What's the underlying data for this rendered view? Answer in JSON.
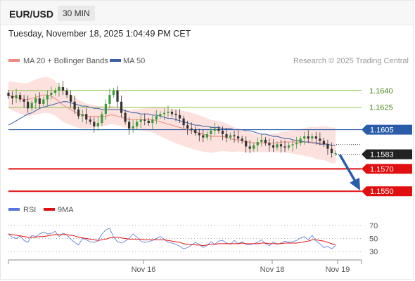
{
  "header": {
    "symbol": "EUR/USD",
    "timeframe": "30 MIN",
    "datetime": "Tuesday, November 18, 2025 1:04:49 PM CET"
  },
  "legend": {
    "items": [
      {
        "label": "MA 20 + Bollinger Bands",
        "color": "#f08a80"
      },
      {
        "label": "MA 50",
        "color": "#3a5fa6"
      }
    ],
    "rsi_items": [
      {
        "label": "RSI",
        "color": "#5577dd"
      },
      {
        "label": "9MA",
        "color": "#e01010"
      }
    ]
  },
  "copyright": "Research © 2025 Trading Central",
  "chart_data": [
    {
      "type": "candlestick",
      "pair": "EUR/USD",
      "price_range": [
        1.1545,
        1.165
      ],
      "x_ticks": [
        "Nov 16",
        "Nov 18",
        "Nov 19"
      ],
      "levels": [
        {
          "value": 1.164,
          "label": "1.1640",
          "kind": "resistance",
          "color": "#8bc34a"
        },
        {
          "value": 1.1625,
          "label": "1.1625",
          "kind": "resistance",
          "color": "#8bc34a"
        },
        {
          "value": 1.1605,
          "label": "1.1605",
          "kind": "pivot",
          "color": "#2a5caa"
        },
        {
          "value": 1.1583,
          "label": "1.1583",
          "kind": "last-price",
          "color": "#222222"
        },
        {
          "value": 1.157,
          "label": "1.1570",
          "kind": "support",
          "color": "#e01010"
        },
        {
          "value": 1.155,
          "label": "1.1550",
          "kind": "support",
          "color": "#e01010"
        }
      ],
      "close": [
        1.1635,
        1.1633,
        1.1636,
        1.1632,
        1.163,
        1.1624,
        1.1629,
        1.1633,
        1.1628,
        1.1632,
        1.1636,
        1.1638,
        1.164,
        1.1643,
        1.164,
        1.1636,
        1.163,
        1.1623,
        1.1617,
        1.1619,
        1.1614,
        1.1612,
        1.1608,
        1.1611,
        1.1619,
        1.1628,
        1.1636,
        1.164,
        1.163,
        1.162,
        1.1612,
        1.1606,
        1.1608,
        1.1612,
        1.1614,
        1.1613,
        1.1611,
        1.1614,
        1.1617,
        1.1619,
        1.162,
        1.1621,
        1.1619,
        1.1618,
        1.1615,
        1.1609,
        1.1606,
        1.1605,
        1.1602,
        1.16,
        1.1598,
        1.1601,
        1.1604,
        1.1606,
        1.1604,
        1.1601,
        1.1598,
        1.16,
        1.1599,
        1.1597,
        1.1595,
        1.159,
        1.1588,
        1.1591,
        1.1594,
        1.1596,
        1.1593,
        1.1591,
        1.1589,
        1.1592,
        1.159,
        1.1589,
        1.1591,
        1.1592,
        1.1593,
        1.1597,
        1.1599,
        1.1597,
        1.1599,
        1.1597,
        1.1595,
        1.1592,
        1.1588,
        1.1584,
        1.1584
      ],
      "ma50": [
        1.1609,
        1.1611,
        1.1613,
        1.1615,
        1.1617,
        1.1619,
        1.162,
        1.1622,
        1.1624,
        1.1625,
        1.1626,
        1.1627,
        1.1628,
        1.1629,
        1.163,
        1.163,
        1.1629,
        1.1628,
        1.1627,
        1.1626,
        1.1626,
        1.1625,
        1.1624,
        1.1624,
        1.1623,
        1.1623,
        1.1623,
        1.1623,
        1.1623,
        1.1623,
        1.1622,
        1.1621,
        1.162,
        1.162,
        1.1619,
        1.1619,
        1.1619,
        1.1618,
        1.1618,
        1.1617,
        1.1616,
        1.1615,
        1.1615,
        1.1614,
        1.1613,
        1.1612,
        1.1611,
        1.161,
        1.1609,
        1.1609,
        1.1608,
        1.1608,
        1.1607,
        1.1607,
        1.1607,
        1.1606,
        1.1606,
        1.1606,
        1.1605,
        1.1605,
        1.1605,
        1.1604,
        1.1604,
        1.1603,
        1.1602,
        1.1601,
        1.1601,
        1.16,
        1.1599,
        1.1599,
        1.1598,
        1.1597,
        1.1597,
        1.1596,
        1.1595,
        1.1595,
        1.1594,
        1.1594,
        1.1593,
        1.1593,
        1.1592,
        1.1592,
        1.1592,
        1.1591,
        1.1591
      ],
      "ma20": [
        1.1636,
        1.1635,
        1.1634,
        1.1633,
        1.1632,
        1.1632,
        1.1633,
        1.1634,
        1.1635,
        1.1636,
        1.1636,
        1.1635,
        1.1633,
        1.163,
        1.1627,
        1.1625,
        1.1623,
        1.1621,
        1.1619,
        1.1618,
        1.1617,
        1.1617,
        1.1617,
        1.1617,
        1.1617,
        1.1617,
        1.1618,
        1.1618,
        1.1617,
        1.1616,
        1.1615,
        1.1614,
        1.1614,
        1.1614,
        1.1614,
        1.1614,
        1.1614,
        1.1614,
        1.1613,
        1.1612,
        1.1611,
        1.161,
        1.1609,
        1.1608,
        1.1607,
        1.1606,
        1.1605,
        1.1604,
        1.1603,
        1.1602,
        1.1601,
        1.16,
        1.1599,
        1.1599,
        1.1599,
        1.1599,
        1.1598,
        1.1597,
        1.1596,
        1.1596,
        1.1595,
        1.1594,
        1.1594,
        1.1593,
        1.1593,
        1.1593,
        1.1593,
        1.1593,
        1.1593,
        1.1593,
        1.1594,
        1.1594,
        1.1594,
        1.1594,
        1.1594,
        1.1594,
        1.1594,
        1.1594,
        1.1594,
        1.1593,
        1.1593,
        1.1593,
        1.1592,
        1.1591,
        1.1591
      ]
    },
    {
      "type": "line",
      "name": "RSI",
      "ylim": [
        22,
        78
      ],
      "y_ticks": [
        70,
        50,
        30
      ],
      "series": [
        {
          "name": "RSI",
          "color": "#5577dd",
          "values": [
            56,
            52,
            50,
            54,
            47,
            44,
            55,
            53,
            57,
            60,
            57,
            58,
            61,
            53,
            58,
            56,
            49,
            44,
            40,
            50,
            48,
            45,
            44,
            46,
            57,
            63,
            66,
            52,
            45,
            43,
            46,
            50,
            57,
            52,
            46,
            44,
            45,
            47,
            50,
            53,
            49,
            44,
            43,
            41,
            38,
            34,
            36,
            40,
            44,
            41,
            36,
            39,
            45,
            41,
            46,
            47,
            43,
            41,
            47,
            42,
            45,
            41,
            40,
            42,
            44,
            48,
            42,
            39,
            45,
            41,
            43,
            46,
            44,
            45,
            47,
            51,
            53,
            48,
            55,
            46,
            42,
            36,
            38,
            34,
            39
          ]
        },
        {
          "name": "9MA",
          "color": "#e01010",
          "values": [
            57,
            56,
            55,
            54,
            53,
            52,
            52,
            52,
            53,
            53,
            54,
            55,
            56,
            56,
            56,
            56,
            55,
            54,
            52,
            51,
            50,
            49,
            48,
            47,
            48,
            49,
            51,
            52,
            52,
            51,
            50,
            49,
            49,
            49,
            49,
            48,
            48,
            48,
            48,
            48,
            48,
            47,
            46,
            45,
            44,
            42,
            41,
            41,
            40,
            40,
            39,
            40,
            41,
            41,
            42,
            42,
            42,
            42,
            42,
            42,
            43,
            42,
            42,
            42,
            42,
            43,
            43,
            42,
            42,
            42,
            42,
            43,
            43,
            43,
            43,
            44,
            45,
            46,
            48,
            48,
            47,
            46,
            44,
            42,
            40
          ]
        }
      ]
    }
  ]
}
